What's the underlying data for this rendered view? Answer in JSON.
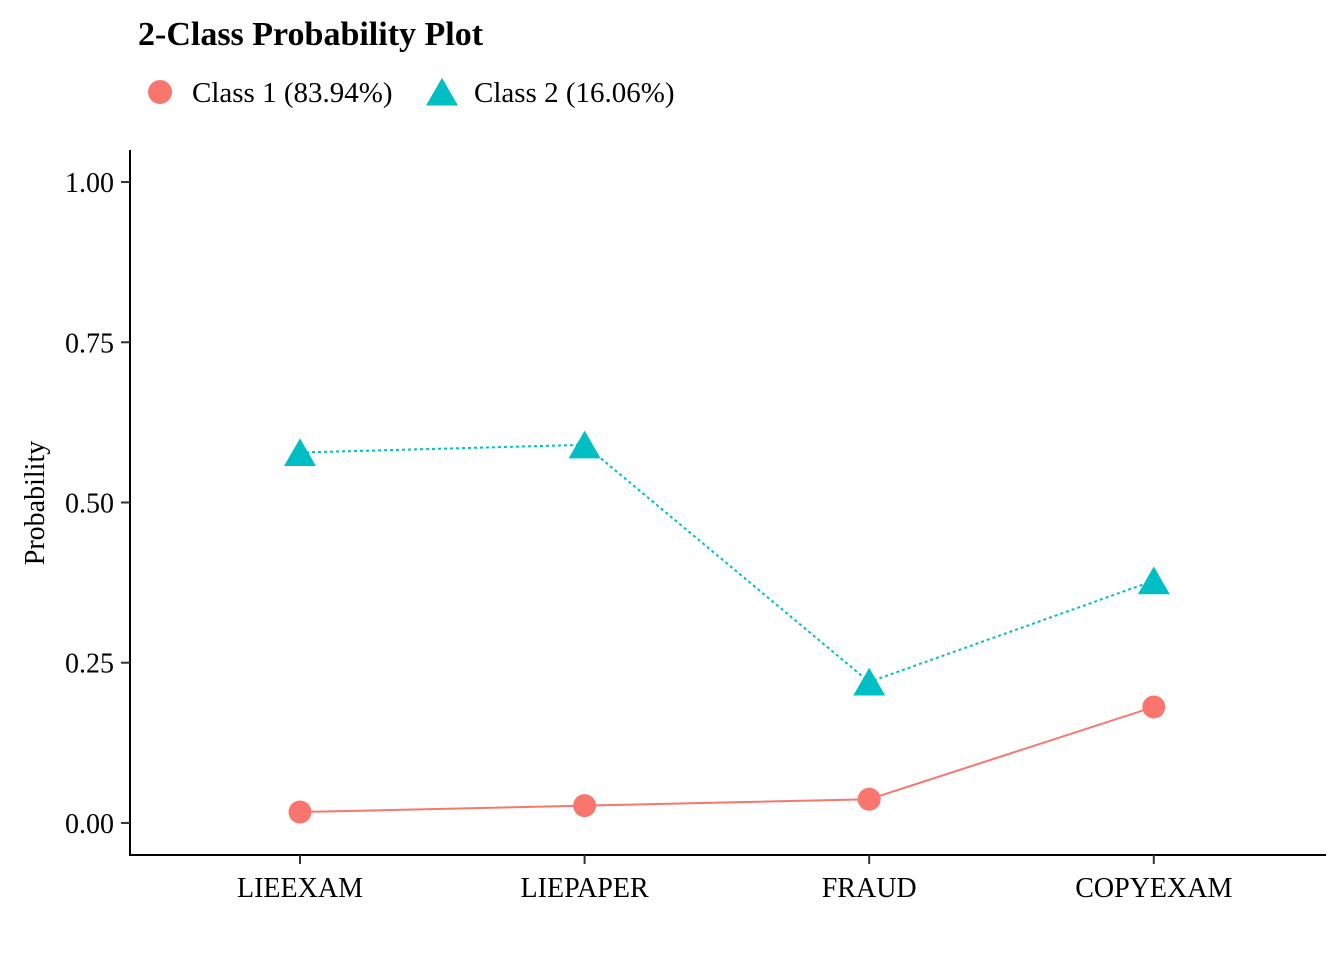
{
  "chart_data": {
    "type": "line",
    "title": "2-Class Probability Plot",
    "xlabel": "",
    "ylabel": "Probability",
    "categories": [
      "LIEEXAM",
      "LIEPAPER",
      "FRAUD",
      "COPYEXAM"
    ],
    "ylim": [
      -0.05,
      1.05
    ],
    "yticks": [
      0.0,
      0.25,
      0.5,
      0.75,
      1.0
    ],
    "ytick_labels": [
      "0.00",
      "0.25",
      "0.50",
      "0.75",
      "1.00"
    ],
    "grid": false,
    "legend_position": "top-left",
    "series": [
      {
        "name": "Class 1 (83.94%)",
        "values": [
          0.017,
          0.027,
          0.037,
          0.181
        ],
        "color": "#F8766D",
        "marker": "circle",
        "line": "solid"
      },
      {
        "name": "Class 2 (16.06%)",
        "values": [
          0.578,
          0.59,
          0.22,
          0.378
        ],
        "color": "#00BFC4",
        "marker": "triangle",
        "line": "dotted"
      }
    ]
  }
}
